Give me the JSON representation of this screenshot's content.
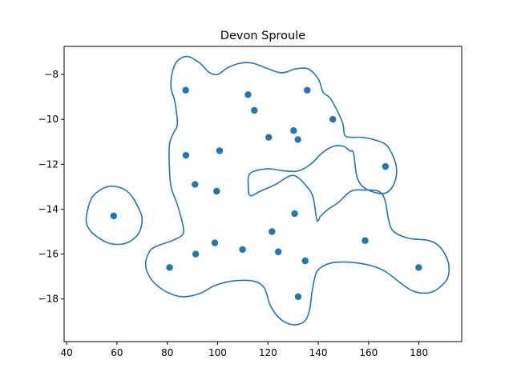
{
  "chart_data": {
    "type": "scatter",
    "title": "Devon Sproule",
    "xlabel": "",
    "ylabel": "",
    "xlim": [
      39,
      197
    ],
    "ylim": [
      -19.9,
      -6.75
    ],
    "xticks": [
      40,
      60,
      80,
      100,
      120,
      140,
      160,
      180
    ],
    "yticks": [
      -18,
      -16,
      -14,
      -12,
      -10,
      -8
    ],
    "grid": false,
    "colors": {
      "points": "#1f77b4",
      "contour": "#1f77b4"
    },
    "points": [
      {
        "x": 58.7,
        "y": -14.3
      },
      {
        "x": 80.9,
        "y": -16.6
      },
      {
        "x": 87.3,
        "y": -8.7
      },
      {
        "x": 87.4,
        "y": -11.6
      },
      {
        "x": 91.0,
        "y": -12.9
      },
      {
        "x": 91.3,
        "y": -16.0
      },
      {
        "x": 98.9,
        "y": -15.5
      },
      {
        "x": 99.6,
        "y": -13.2
      },
      {
        "x": 100.8,
        "y": -11.4
      },
      {
        "x": 109.9,
        "y": -15.8
      },
      {
        "x": 112.1,
        "y": -8.9
      },
      {
        "x": 114.6,
        "y": -9.6
      },
      {
        "x": 120.3,
        "y": -10.8
      },
      {
        "x": 121.6,
        "y": -15.0
      },
      {
        "x": 124.1,
        "y": -15.9
      },
      {
        "x": 130.2,
        "y": -10.5
      },
      {
        "x": 130.6,
        "y": -14.2
      },
      {
        "x": 131.9,
        "y": -10.9
      },
      {
        "x": 132.0,
        "y": -17.9
      },
      {
        "x": 134.8,
        "y": -16.3
      },
      {
        "x": 135.6,
        "y": -8.7
      },
      {
        "x": 145.8,
        "y": -10.0
      },
      {
        "x": 158.6,
        "y": -15.4
      },
      {
        "x": 166.7,
        "y": -12.1
      },
      {
        "x": 179.9,
        "y": -16.6
      }
    ],
    "contours": [
      [
        [
          47.8,
          -14.4
        ],
        [
          50.0,
          -13.5
        ],
        [
          55.0,
          -13.05
        ],
        [
          60.0,
          -13.0
        ],
        [
          65.0,
          -13.3
        ],
        [
          68.8,
          -14.0
        ],
        [
          70.0,
          -14.5
        ],
        [
          68.5,
          -15.1
        ],
        [
          64.0,
          -15.5
        ],
        [
          58.0,
          -15.55
        ],
        [
          53.0,
          -15.3
        ],
        [
          49.0,
          -14.9
        ],
        [
          47.8,
          -14.4
        ]
      ],
      [
        [
          127.0,
          -7.9
        ],
        [
          131.0,
          -7.75
        ],
        [
          136.0,
          -7.75
        ],
        [
          140.0,
          -8.2
        ],
        [
          142.0,
          -8.8
        ],
        [
          145.0,
          -9.1
        ],
        [
          149.5,
          -10.1
        ],
        [
          150.5,
          -10.7
        ],
        [
          153.0,
          -10.8
        ],
        [
          157.0,
          -10.8
        ],
        [
          162.0,
          -10.9
        ],
        [
          167.5,
          -11.2
        ],
        [
          171.0,
          -12.1
        ],
        [
          170.0,
          -12.9
        ],
        [
          166.0,
          -13.3
        ],
        [
          159.0,
          -13.1
        ],
        [
          155.5,
          -12.6
        ],
        [
          154.0,
          -11.5
        ],
        [
          152.5,
          -11.4
        ],
        [
          150.0,
          -11.2
        ],
        [
          146.0,
          -11.2
        ],
        [
          141.5,
          -11.5
        ],
        [
          137.0,
          -12.0
        ],
        [
          132.0,
          -12.3
        ],
        [
          126.5,
          -12.3
        ],
        [
          120.0,
          -12.2
        ],
        [
          113.0,
          -12.4
        ],
        [
          112.2,
          -13.0
        ],
        [
          113.0,
          -13.4
        ],
        [
          117.0,
          -13.2
        ],
        [
          123.0,
          -12.9
        ],
        [
          130.0,
          -12.5
        ],
        [
          135.5,
          -13.0
        ],
        [
          138.0,
          -13.5
        ],
        [
          139.5,
          -14.5
        ],
        [
          141.0,
          -14.3
        ],
        [
          144.0,
          -14.0
        ],
        [
          148.0,
          -13.7
        ],
        [
          153.0,
          -13.2
        ],
        [
          158.5,
          -13.15
        ],
        [
          164.0,
          -13.2
        ],
        [
          166.5,
          -13.6
        ],
        [
          168.0,
          -14.5
        ],
        [
          170.0,
          -15.0
        ],
        [
          176.0,
          -15.3
        ],
        [
          184.0,
          -15.4
        ],
        [
          188.5,
          -15.7
        ],
        [
          191.5,
          -16.3
        ],
        [
          191.8,
          -16.9
        ],
        [
          190.0,
          -17.3
        ],
        [
          185.0,
          -17.7
        ],
        [
          179.0,
          -17.7
        ],
        [
          174.0,
          -17.4
        ],
        [
          167.0,
          -16.8
        ],
        [
          162.0,
          -16.55
        ],
        [
          156.0,
          -16.4
        ],
        [
          150.0,
          -16.35
        ],
        [
          145.0,
          -16.4
        ],
        [
          141.0,
          -16.6
        ],
        [
          139.0,
          -16.9
        ],
        [
          137.5,
          -17.7
        ],
        [
          136.5,
          -18.5
        ],
        [
          134.5,
          -19.0
        ],
        [
          130.0,
          -19.15
        ],
        [
          125.0,
          -18.9
        ],
        [
          121.0,
          -18.3
        ],
        [
          118.5,
          -17.5
        ],
        [
          114.0,
          -17.2
        ],
        [
          106.0,
          -17.2
        ],
        [
          99.0,
          -17.4
        ],
        [
          93.0,
          -17.75
        ],
        [
          86.0,
          -17.9
        ],
        [
          80.0,
          -17.7
        ],
        [
          75.0,
          -17.3
        ],
        [
          72.0,
          -16.8
        ],
        [
          71.5,
          -16.3
        ],
        [
          73.5,
          -15.8
        ],
        [
          77.0,
          -15.6
        ],
        [
          82.0,
          -15.4
        ],
        [
          85.5,
          -15.2
        ],
        [
          86.5,
          -15.0
        ],
        [
          86.0,
          -14.6
        ],
        [
          84.0,
          -13.8
        ],
        [
          81.5,
          -13.0
        ],
        [
          80.8,
          -12.0
        ],
        [
          80.9,
          -11.1
        ],
        [
          82.5,
          -10.6
        ],
        [
          84.0,
          -10.2
        ],
        [
          83.0,
          -9.2
        ],
        [
          81.5,
          -8.6
        ],
        [
          82.0,
          -7.9
        ],
        [
          84.0,
          -7.4
        ],
        [
          88.0,
          -7.2
        ],
        [
          93.0,
          -7.5
        ],
        [
          96.5,
          -7.9
        ],
        [
          100.0,
          -8.0
        ],
        [
          104.0,
          -7.7
        ],
        [
          109.0,
          -7.5
        ],
        [
          114.0,
          -7.5
        ],
        [
          119.0,
          -7.7
        ],
        [
          124.0,
          -7.9
        ],
        [
          127.0,
          -7.9
        ]
      ]
    ]
  }
}
